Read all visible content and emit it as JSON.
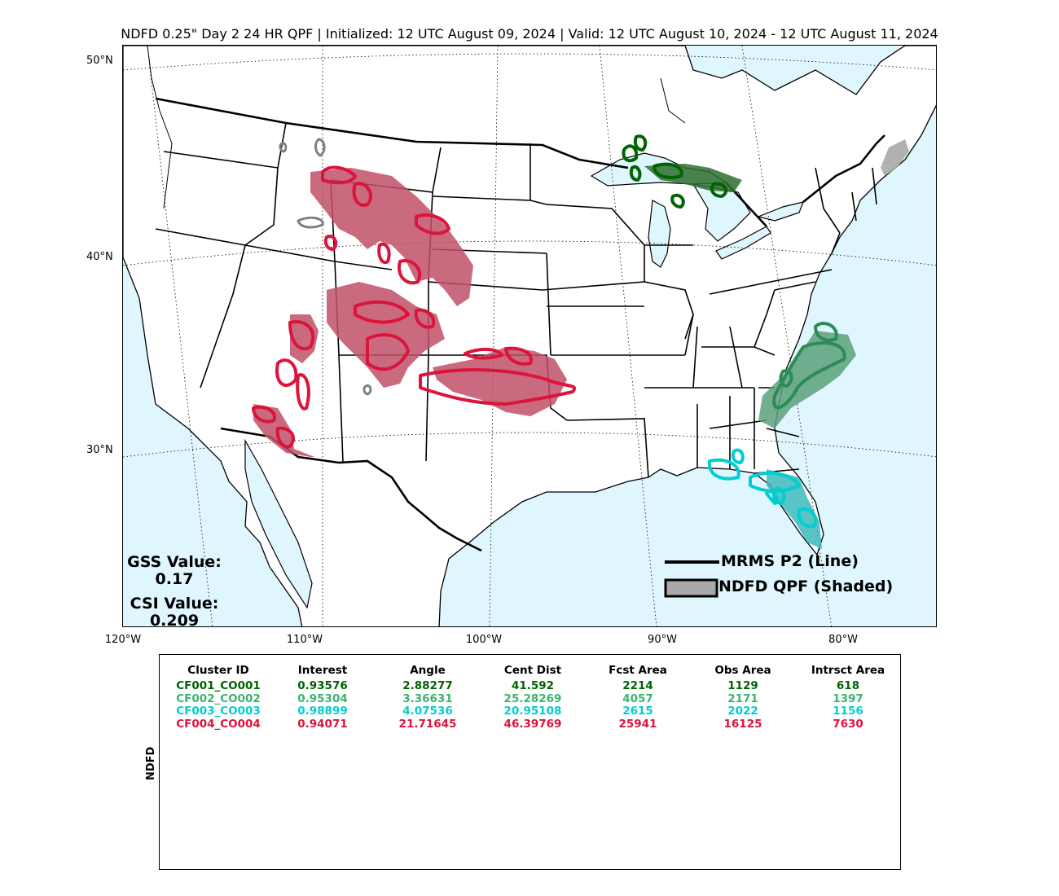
{
  "title": "NDFD 0.25\" Day 2 24 HR QPF | Initialized: 12 UTC August 09, 2024 | Valid: 12 UTC August 10, 2024 - 12 UTC August 11, 2024",
  "lat_labels": [
    "50°N",
    "40°N",
    "30°N"
  ],
  "lon_labels": [
    "120°W",
    "110°W",
    "100°W",
    "90°W",
    "80°W"
  ],
  "scores": {
    "gss_label": "GSS Value:",
    "gss_value": "0.17",
    "csi_label": "CSI Value:",
    "csi_value": "0.209"
  },
  "legend": {
    "line_label": "MRMS P2 (Line)",
    "shaded_label": "NDFD QPF (Shaded)"
  },
  "colors": {
    "ocean": "#dff6ff",
    "land": "#ffffff",
    "obs_unmatched": "#808080",
    "fcst_unmatched": "#a9a9a9",
    "cluster1": "#006400",
    "cluster2": "#2e8b57",
    "cluster3": "#00ced1",
    "cluster4": "#dc143c"
  },
  "table": {
    "ylabel": "NDFD",
    "headers": [
      "Cluster ID",
      "Interest",
      "Angle",
      "Cent Dist",
      "Fcst Area",
      "Obs Area",
      "Intrsct Area"
    ],
    "rows": [
      {
        "color": "#006400",
        "cells": [
          "CF001_CO001",
          "0.93576",
          "2.88277",
          "41.592",
          "2214",
          "1129",
          "618"
        ]
      },
      {
        "color": "#3cb371",
        "cells": [
          "CF002_CO002",
          "0.95304",
          "3.36631",
          "25.28269",
          "4057",
          "2171",
          "1397"
        ]
      },
      {
        "color": "#00ced1",
        "cells": [
          "CF003_CO003",
          "0.98899",
          "4.07536",
          "20.95108",
          "2615",
          "2022",
          "1156"
        ]
      },
      {
        "color": "#dc143c",
        "cells": [
          "CF004_CO004",
          "0.94071",
          "21.71645",
          "46.39769",
          "25941",
          "16125",
          "7630"
        ]
      }
    ]
  }
}
